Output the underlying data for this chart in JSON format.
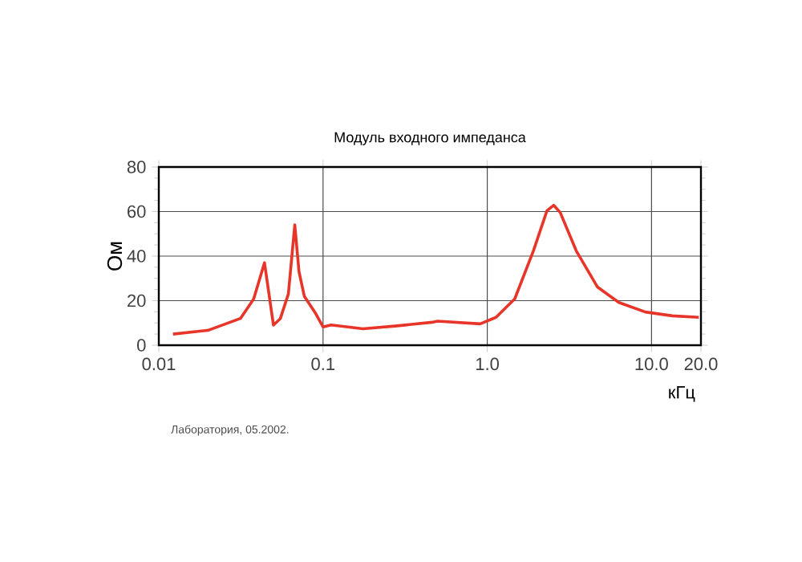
{
  "chart_data": {
    "type": "line",
    "title": "Модуль входного импеданса",
    "xlabel": "кГц",
    "ylabel": "Ом",
    "log": "x",
    "grid": true,
    "marker": "none",
    "line_style": "solid",
    "xlim": [
      0.01,
      20
    ],
    "ylim": [
      0,
      80
    ],
    "xticks": [
      0.01,
      0.1,
      {
        "value": 1,
        "label": "1.0"
      },
      {
        "value": 10,
        "label": "10.0"
      },
      {
        "value": 20,
        "label": "20.0"
      }
    ],
    "yticks": [
      0,
      20,
      40,
      60,
      80
    ],
    "annotations": [
      "Лаборатория, 05.2002."
    ],
    "series": [
      {
        "color": "#e8352a",
        "x": [
          0.0122,
          0.02,
          0.0314,
          0.0378,
          0.044,
          0.0499,
          0.055,
          0.0615,
          0.0673,
          0.0714,
          0.0769,
          0.0894,
          0.1,
          0.112,
          0.175,
          0.274,
          0.462,
          0.498,
          0.906,
          1.13,
          1.47,
          1.91,
          2.31,
          2.54,
          2.78,
          3.48,
          4.69,
          6.33,
          9.18,
          13.4,
          19.4
        ],
        "values": [
          5,
          6.7,
          12,
          20.7,
          37,
          9,
          12,
          23,
          54,
          33,
          22,
          14.7,
          8.2,
          9.1,
          7.4,
          8.6,
          10.3,
          10.8,
          9.6,
          12.5,
          20.8,
          42.4,
          60.4,
          62.8,
          59.6,
          42.4,
          26.1,
          19.2,
          14.9,
          13.2,
          12.5
        ]
      }
    ]
  }
}
